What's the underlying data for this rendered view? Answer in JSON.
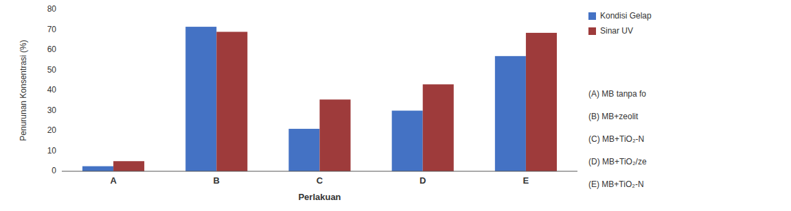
{
  "chart_data": {
    "type": "bar",
    "categories": [
      "A",
      "B",
      "C",
      "D",
      "E"
    ],
    "series": [
      {
        "name": "Kondisi Gelap",
        "color": "#4472C4",
        "values": [
          2.5,
          71.5,
          21.0,
          30.0,
          57.0
        ]
      },
      {
        "name": "Sinar UV",
        "color": "#9E3B3B",
        "values": [
          5.0,
          69.0,
          35.5,
          43.0,
          68.5
        ]
      }
    ],
    "ylabel": "Penurunan Konsentrasi (%)",
    "xlabel": "Perlakuan",
    "ylim": [
      0,
      80
    ],
    "yticks": [
      0,
      10,
      20,
      30,
      40,
      50,
      60,
      70,
      80
    ],
    "grid": false,
    "legend": "right",
    "annotations": [
      "(A) MB tanpa fo",
      "(B) MB+zeolit",
      "(C) MB+TiO₂-N",
      "(D) MB+TiO₂/ze",
      "(E) MB+TiO₂-N"
    ]
  }
}
